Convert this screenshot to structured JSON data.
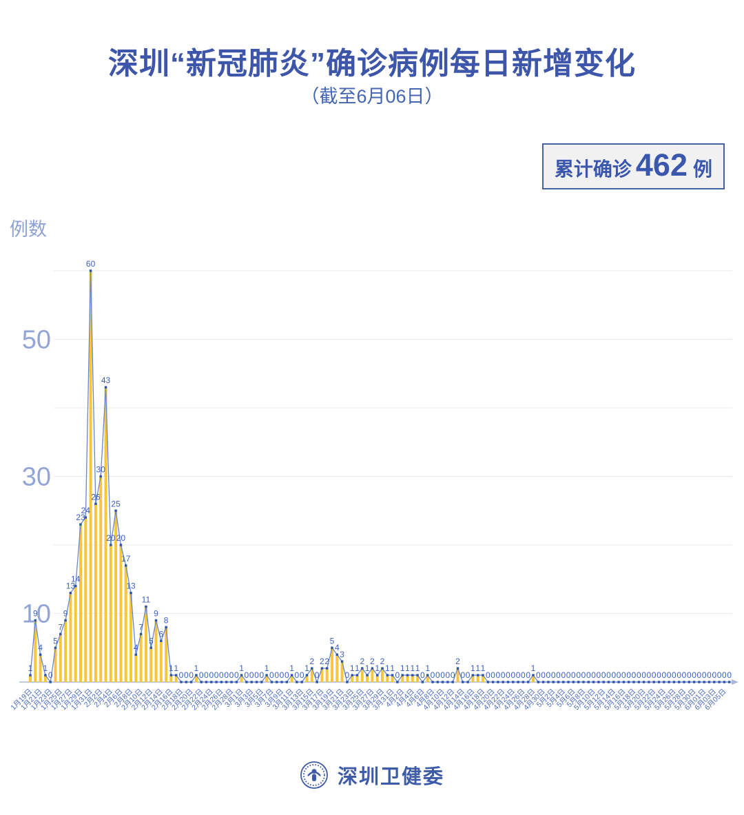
{
  "header": {
    "title": "深圳“新冠肺炎”确诊病例每日新增变化",
    "subtitle": "（截至6月06日）"
  },
  "summary_badge": {
    "prefix": "累计确诊",
    "value": "462",
    "suffix": "例"
  },
  "footer": {
    "org_name": "深圳卫健委"
  },
  "chart_data": {
    "type": "bar",
    "subtype": "bar-with-line-and-point-labels",
    "title": "深圳“新冠肺炎”确诊病例每日新增变化",
    "subtitle": "（截至6月06日）",
    "ylabel": "例数",
    "xlabel": "",
    "ylim": [
      0,
      61
    ],
    "yticks": [
      10,
      30,
      50
    ],
    "gridlines": [
      10,
      20,
      30,
      40,
      50,
      60
    ],
    "x_label_every": 2,
    "legend": "none",
    "total_label": "累计确诊 462 例",
    "dates": [
      "1月19日",
      "1月20日",
      "1月21日",
      "1月22日",
      "1月23日",
      "1月24日",
      "1月25日",
      "1月26日",
      "1月27日",
      "1月28日",
      "1月29日",
      "1月30日",
      "1月31日",
      "2月1日",
      "2月2日",
      "2月3日",
      "2月4日",
      "2月5日",
      "2月6日",
      "2月7日",
      "2月8日",
      "2月9日",
      "2月10日",
      "2月11日",
      "2月12日",
      "2月13日",
      "2月14日",
      "2月15日",
      "2月16日",
      "2月17日",
      "2月18日",
      "2月19日",
      "2月20日",
      "2月21日",
      "2月22日",
      "2月23日",
      "2月24日",
      "2月25日",
      "2月26日",
      "2月27日",
      "2月28日",
      "2月29日",
      "3月1日",
      "3月2日",
      "3月3日",
      "3月4日",
      "3月5日",
      "3月6日",
      "3月7日",
      "3月8日",
      "3月9日",
      "3月10日",
      "3月11日",
      "3月12日",
      "3月13日",
      "3月14日",
      "3月15日",
      "3月16日",
      "3月17日",
      "3月18日",
      "3月19日",
      "3月20日",
      "3月21日",
      "3月22日",
      "3月23日",
      "3月24日",
      "3月25日",
      "3月26日",
      "3月27日",
      "3月28日",
      "3月29日",
      "3月30日",
      "3月31日",
      "4月1日",
      "4月2日",
      "4月3日",
      "4月4日",
      "4月5日",
      "4月6日",
      "4月7日",
      "4月8日",
      "4月9日",
      "4月10日",
      "4月11日",
      "4月12日",
      "4月13日",
      "4月14日",
      "4月15日",
      "4月16日",
      "4月17日",
      "4月18日",
      "4月19日",
      "4月20日",
      "4月21日",
      "4月22日",
      "4月23日",
      "4月24日",
      "4月25日",
      "4月26日",
      "4月27日",
      "4月28日",
      "4月29日",
      "4月30日",
      "5月1日",
      "5月2日",
      "5月3日",
      "5月4日",
      "5月5日",
      "5月6日",
      "5月7日",
      "5月8日",
      "5月9日",
      "5月10日",
      "5月11日",
      "5月12日",
      "5月13日",
      "5月14日",
      "5月15日",
      "5月16日",
      "5月17日",
      "5月18日",
      "5月19日",
      "5月20日",
      "5月21日",
      "5月22日",
      "5月23日",
      "5月24日",
      "5月25日",
      "5月26日",
      "5月27日",
      "5月28日",
      "5月29日",
      "5月30日",
      "5月31日",
      "6月01日",
      "6月02日",
      "6月03日",
      "6月04日",
      "6月05日",
      "6月06日"
    ],
    "values": [
      1,
      9,
      4,
      1,
      0,
      5,
      7,
      9,
      13,
      14,
      23,
      24,
      60,
      26,
      30,
      43,
      20,
      25,
      20,
      17,
      13,
      4,
      7,
      11,
      5,
      9,
      6,
      8,
      1,
      1,
      0,
      0,
      0,
      1,
      0,
      0,
      0,
      0,
      0,
      0,
      0,
      0,
      1,
      0,
      0,
      0,
      0,
      1,
      0,
      0,
      0,
      0,
      1,
      0,
      0,
      1,
      2,
      0,
      2,
      2,
      5,
      4,
      3,
      0,
      1,
      1,
      2,
      1,
      2,
      1,
      2,
      1,
      1,
      0,
      1,
      1,
      1,
      1,
      0,
      1,
      0,
      0,
      0,
      0,
      0,
      2,
      0,
      0,
      1,
      1,
      1,
      0,
      0,
      0,
      0,
      0,
      0,
      0,
      0,
      0,
      1,
      0,
      0,
      0,
      0,
      0,
      0,
      0,
      0,
      0,
      0,
      0,
      0,
      0,
      0,
      0,
      0,
      0,
      0,
      0,
      0,
      0,
      0,
      0,
      0,
      0,
      0,
      0,
      0,
      0,
      0,
      0,
      0,
      0,
      0,
      0,
      0,
      0,
      0,
      0
    ],
    "colors": {
      "bar": "#F8C63C",
      "line": "#6787CD",
      "marker": "#2E54A5",
      "data_label": "#3A5FC0",
      "x_label": "#4C6CC0",
      "y_tick_label": "#93A5D8",
      "y_axis_title": "#8FA2D6",
      "grid": "#E9E9EB",
      "axis": "#A9B7DB",
      "title": "#3D56A9"
    }
  }
}
